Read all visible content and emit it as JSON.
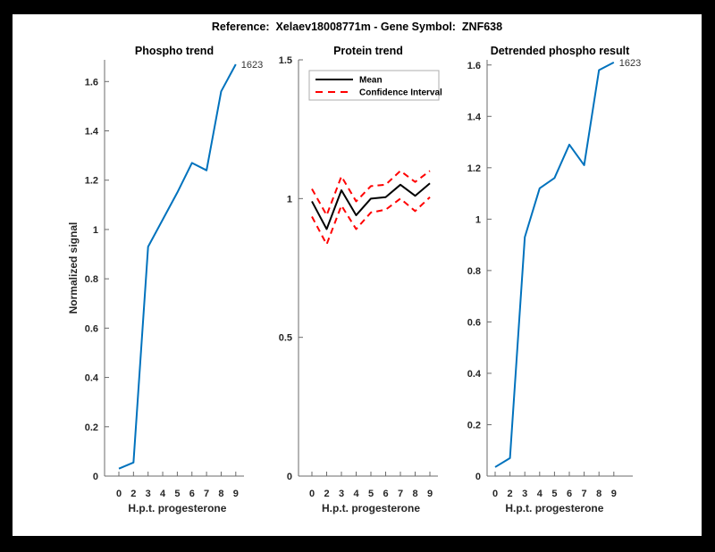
{
  "figure_title": "Reference:  Xelaev18008771m - Gene Symbol:  ZNF638",
  "colors": {
    "blue": "#0072BD",
    "red": "#FF0000",
    "black": "#000000",
    "axis": "#6b6b6b",
    "legend_border": "#aeaeae"
  },
  "chart_data": [
    {
      "id": "phospho-trend",
      "type": "line",
      "title": "Phospho trend",
      "xlabel": "H.p.t. progesterone",
      "ylabel": "Normalized signal",
      "categories": [
        0,
        2,
        3,
        4,
        5,
        6,
        7,
        8,
        9
      ],
      "xtick_labels": [
        "0",
        "2",
        "3",
        "4",
        "5",
        "6",
        "7",
        "8",
        "9"
      ],
      "ylim": [
        0,
        1.688
      ],
      "yticks": [
        {
          "value": 0,
          "label": "0"
        },
        {
          "value": 0.2,
          "label": "0.2"
        },
        {
          "value": 0.4,
          "label": "0.4"
        },
        {
          "value": 0.6,
          "label": "0.6"
        },
        {
          "value": 0.8,
          "label": "0.8"
        },
        {
          "value": 1,
          "label": "1"
        },
        {
          "value": 1.2,
          "label": "1.2"
        },
        {
          "value": 1.4,
          "label": "1.4"
        },
        {
          "value": 1.6,
          "label": "1.6"
        }
      ],
      "grid": false,
      "end_label": "1623",
      "series": [
        {
          "name": "1623",
          "color": "blue",
          "style": "solid",
          "values": [
            0.03,
            0.055,
            0.93,
            1.04,
            1.15,
            1.27,
            1.24,
            1.56,
            1.67
          ]
        }
      ]
    },
    {
      "id": "protein-trend",
      "type": "line",
      "title": "Protein trend",
      "xlabel": "H.p.t. progesterone",
      "ylabel": "",
      "categories": [
        0,
        2,
        3,
        4,
        5,
        6,
        7,
        8,
        9
      ],
      "xtick_labels": [
        "0",
        "2",
        "3",
        "4",
        "5",
        "6",
        "7",
        "8",
        "9"
      ],
      "ylim": [
        0,
        1.5
      ],
      "yticks": [
        {
          "value": 0,
          "label": "0"
        },
        {
          "value": 0.5,
          "label": "0.5"
        },
        {
          "value": 1,
          "label": "1"
        },
        {
          "value": 1.5,
          "label": "1.5"
        }
      ],
      "grid": false,
      "legend": {
        "position": "top-left",
        "entries": [
          {
            "label": "Mean",
            "line": "solid",
            "color": "black"
          },
          {
            "label": "Confidence Interval",
            "line": "dashed",
            "color": "red"
          }
        ]
      },
      "series": [
        {
          "name": "Mean",
          "color": "black",
          "style": "solid",
          "values": [
            0.99,
            0.89,
            1.03,
            0.94,
            1.0,
            1.005,
            1.05,
            1.01,
            1.055
          ]
        },
        {
          "name": "Confidence Interval upper",
          "color": "red",
          "style": "dashed",
          "values": [
            1.035,
            0.94,
            1.08,
            0.99,
            1.045,
            1.05,
            1.1,
            1.06,
            1.1
          ]
        },
        {
          "name": "Confidence Interval lower",
          "color": "red",
          "style": "dashed",
          "values": [
            0.935,
            0.835,
            0.975,
            0.89,
            0.95,
            0.96,
            1.0,
            0.955,
            1.005
          ]
        }
      ]
    },
    {
      "id": "detrended-phospho-result",
      "type": "line",
      "title": "Detrended phospho result",
      "xlabel": "H.p.t. progesterone",
      "ylabel": "",
      "categories": [
        0,
        2,
        3,
        4,
        5,
        6,
        7,
        8,
        9
      ],
      "xtick_labels": [
        "0",
        "2",
        "3",
        "4",
        "5",
        "6",
        "7",
        "8",
        "9"
      ],
      "ylim": [
        0,
        1.62
      ],
      "yticks": [
        {
          "value": 0,
          "label": "0"
        },
        {
          "value": 0.2,
          "label": "0.2"
        },
        {
          "value": 0.4,
          "label": "0.4"
        },
        {
          "value": 0.6,
          "label": "0.6"
        },
        {
          "value": 0.8,
          "label": "0.8"
        },
        {
          "value": 1,
          "label": "1"
        },
        {
          "value": 1.2,
          "label": "1.2"
        },
        {
          "value": 1.4,
          "label": "1.4"
        },
        {
          "value": 1.6,
          "label": "1.6"
        }
      ],
      "grid": false,
      "end_label": "1623",
      "series": [
        {
          "name": "1623",
          "color": "blue",
          "style": "solid",
          "values": [
            0.035,
            0.07,
            0.93,
            1.12,
            1.16,
            1.29,
            1.21,
            1.58,
            1.61
          ]
        }
      ]
    }
  ]
}
